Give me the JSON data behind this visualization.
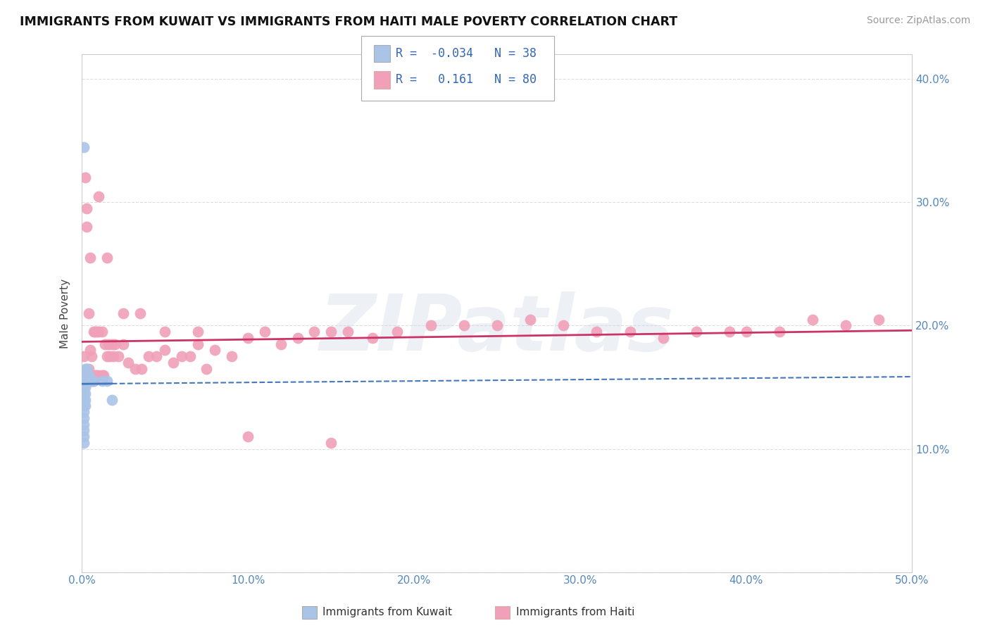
{
  "title": "IMMIGRANTS FROM KUWAIT VS IMMIGRANTS FROM HAITI MALE POVERTY CORRELATION CHART",
  "source": "Source: ZipAtlas.com",
  "ylabel": "Male Poverty",
  "xlim": [
    0.0,
    0.5
  ],
  "ylim": [
    0.0,
    0.42
  ],
  "xticks": [
    0.0,
    0.1,
    0.2,
    0.3,
    0.4,
    0.5
  ],
  "xtick_labels": [
    "0.0%",
    "10.0%",
    "20.0%",
    "30.0%",
    "40.0%",
    "50.0%"
  ],
  "yticks": [
    0.0,
    0.1,
    0.2,
    0.3,
    0.4
  ],
  "ytick_labels_right": [
    "",
    "10.0%",
    "20.0%",
    "30.0%",
    "40.0%"
  ],
  "kuwait_color": "#aac4e8",
  "kuwait_edge": "#88aadd",
  "haiti_color": "#f0a0b8",
  "haiti_edge": "#dd88aa",
  "kuwait_line_color": "#4477bb",
  "haiti_line_color": "#cc3366",
  "kuwait_R": -0.034,
  "kuwait_N": 38,
  "haiti_R": 0.161,
  "haiti_N": 80,
  "legend_label_kuwait": "Immigrants from Kuwait",
  "legend_label_haiti": "Immigrants from Haiti",
  "kuwait_points_x": [
    0.001,
    0.001,
    0.001,
    0.001,
    0.001,
    0.001,
    0.001,
    0.001,
    0.001,
    0.001,
    0.001,
    0.001,
    0.002,
    0.002,
    0.002,
    0.002,
    0.002,
    0.002,
    0.002,
    0.002,
    0.002,
    0.002,
    0.003,
    0.003,
    0.003,
    0.003,
    0.003,
    0.004,
    0.004,
    0.004,
    0.005,
    0.005,
    0.006,
    0.007,
    0.012,
    0.015,
    0.018,
    0.001
  ],
  "kuwait_points_y": [
    0.155,
    0.16,
    0.15,
    0.145,
    0.14,
    0.135,
    0.13,
    0.125,
    0.12,
    0.115,
    0.11,
    0.105,
    0.155,
    0.16,
    0.155,
    0.15,
    0.145,
    0.14,
    0.135,
    0.16,
    0.155,
    0.165,
    0.16,
    0.165,
    0.16,
    0.155,
    0.165,
    0.16,
    0.16,
    0.155,
    0.155,
    0.155,
    0.155,
    0.155,
    0.155,
    0.155,
    0.14,
    0.345
  ],
  "haiti_points_x": [
    0.001,
    0.001,
    0.001,
    0.002,
    0.002,
    0.003,
    0.003,
    0.004,
    0.004,
    0.005,
    0.005,
    0.006,
    0.006,
    0.007,
    0.007,
    0.008,
    0.008,
    0.009,
    0.009,
    0.01,
    0.01,
    0.012,
    0.012,
    0.013,
    0.014,
    0.015,
    0.016,
    0.017,
    0.018,
    0.019,
    0.02,
    0.022,
    0.025,
    0.028,
    0.032,
    0.036,
    0.04,
    0.045,
    0.05,
    0.055,
    0.06,
    0.065,
    0.07,
    0.075,
    0.08,
    0.09,
    0.1,
    0.11,
    0.12,
    0.13,
    0.14,
    0.15,
    0.16,
    0.175,
    0.19,
    0.21,
    0.23,
    0.25,
    0.27,
    0.29,
    0.31,
    0.33,
    0.35,
    0.37,
    0.39,
    0.4,
    0.42,
    0.44,
    0.46,
    0.48,
    0.003,
    0.005,
    0.01,
    0.015,
    0.025,
    0.035,
    0.05,
    0.07,
    0.1,
    0.15
  ],
  "haiti_points_y": [
    0.155,
    0.16,
    0.175,
    0.155,
    0.32,
    0.16,
    0.295,
    0.165,
    0.21,
    0.16,
    0.18,
    0.155,
    0.175,
    0.155,
    0.195,
    0.16,
    0.195,
    0.16,
    0.195,
    0.16,
    0.195,
    0.16,
    0.195,
    0.16,
    0.185,
    0.175,
    0.185,
    0.175,
    0.185,
    0.175,
    0.185,
    0.175,
    0.185,
    0.17,
    0.165,
    0.165,
    0.175,
    0.175,
    0.18,
    0.17,
    0.175,
    0.175,
    0.185,
    0.165,
    0.18,
    0.175,
    0.19,
    0.195,
    0.185,
    0.19,
    0.195,
    0.195,
    0.195,
    0.19,
    0.195,
    0.2,
    0.2,
    0.2,
    0.205,
    0.2,
    0.195,
    0.195,
    0.19,
    0.195,
    0.195,
    0.195,
    0.195,
    0.205,
    0.2,
    0.205,
    0.28,
    0.255,
    0.305,
    0.255,
    0.21,
    0.21,
    0.195,
    0.195,
    0.11,
    0.105
  ],
  "background_color": "#ffffff",
  "grid_color": "#dddddd",
  "watermark_text": "ZIPatlas",
  "watermark_color": "#ccd8e8",
  "watermark_alpha": 0.35
}
